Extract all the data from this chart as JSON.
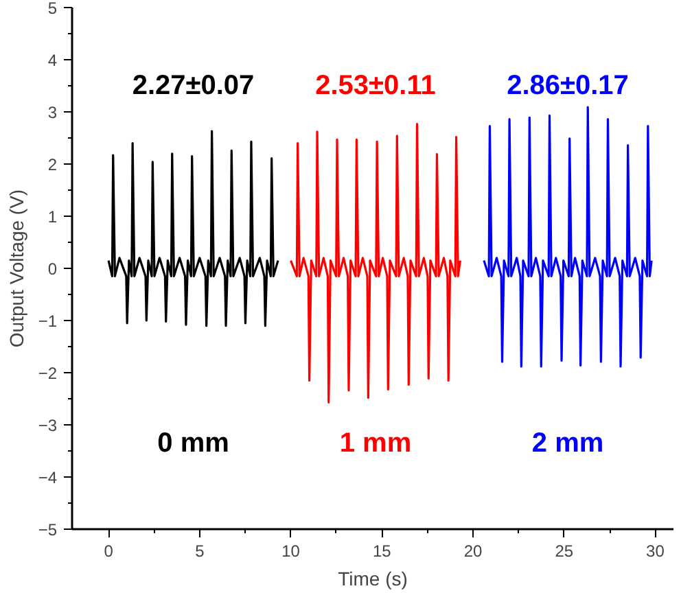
{
  "chart_data": {
    "type": "line",
    "xlabel": "Time (s)",
    "ylabel": "Output Voltage (V)",
    "xlim": [
      -2,
      31
    ],
    "ylim": [
      -5,
      5
    ],
    "xticks": [
      0,
      5,
      10,
      15,
      20,
      25,
      30
    ],
    "yticks": [
      -5,
      -4,
      -3,
      -2,
      -1,
      0,
      1,
      2,
      3,
      4,
      5
    ],
    "grid": false,
    "marker": "none",
    "line_style": "solid",
    "series": [
      {
        "color": "#000000",
        "x": [
          0.0,
          0.2,
          0.25,
          0.35,
          0.6,
          0.97,
          1.02,
          1.12,
          1.27,
          1.32,
          1.42,
          1.7,
          2.03,
          2.08,
          2.18,
          2.37,
          2.42,
          2.52,
          2.8,
          3.1,
          3.15,
          3.25,
          3.44,
          3.49,
          3.59,
          3.9,
          4.2,
          4.25,
          4.35,
          4.53,
          4.58,
          4.68,
          5.0,
          5.32,
          5.37,
          5.47,
          5.62,
          5.67,
          5.77,
          6.1,
          6.39,
          6.44,
          6.54,
          6.7,
          6.75,
          6.85,
          7.2,
          7.46,
          7.51,
          7.61,
          7.78,
          7.83,
          7.93,
          8.3,
          8.55,
          8.6,
          8.7,
          8.9,
          8.95,
          9.05,
          9.3
        ],
        "values": [
          0.15,
          -0.15,
          2.17,
          -0.15,
          0.2,
          -0.15,
          -1.05,
          0.15,
          -0.15,
          2.4,
          -0.15,
          0.2,
          -0.15,
          -1.0,
          0.15,
          -0.15,
          2.04,
          -0.15,
          0.2,
          -0.15,
          -1.02,
          0.15,
          -0.15,
          2.2,
          -0.15,
          0.2,
          -0.15,
          -1.08,
          0.15,
          -0.15,
          2.15,
          -0.15,
          0.2,
          -0.15,
          -1.1,
          0.15,
          -0.15,
          2.63,
          -0.15,
          0.2,
          -0.15,
          -1.1,
          0.15,
          -0.15,
          2.26,
          -0.15,
          0.2,
          -0.15,
          -1.05,
          0.15,
          -0.15,
          2.43,
          -0.15,
          0.2,
          -0.15,
          -1.1,
          0.15,
          -0.15,
          2.11,
          -0.15,
          0.15
        ]
      },
      {
        "color": "#ff0000",
        "x": [
          10.0,
          10.33,
          10.38,
          10.48,
          10.7,
          10.97,
          11.02,
          11.12,
          11.4,
          11.45,
          11.55,
          11.8,
          12.03,
          12.08,
          12.18,
          12.49,
          12.54,
          12.64,
          12.9,
          13.13,
          13.18,
          13.28,
          13.56,
          13.61,
          13.71,
          13.95,
          14.2,
          14.25,
          14.35,
          14.68,
          14.73,
          14.83,
          15.05,
          15.29,
          15.34,
          15.44,
          15.78,
          15.83,
          15.93,
          16.2,
          16.42,
          16.47,
          16.57,
          16.88,
          16.93,
          17.03,
          17.3,
          17.51,
          17.56,
          17.66,
          17.97,
          18.02,
          18.12,
          18.4,
          18.6,
          18.65,
          18.75,
          19.03,
          19.08,
          19.18,
          19.3
        ],
        "values": [
          0.15,
          -0.15,
          2.4,
          -0.15,
          0.2,
          -0.15,
          -2.15,
          0.15,
          -0.15,
          2.62,
          -0.15,
          0.2,
          -0.15,
          -2.57,
          0.15,
          -0.15,
          2.47,
          -0.15,
          0.2,
          -0.15,
          -2.34,
          0.15,
          -0.15,
          2.47,
          -0.15,
          0.2,
          -0.15,
          -2.48,
          0.15,
          -0.15,
          2.43,
          -0.15,
          0.2,
          -0.15,
          -2.32,
          0.15,
          -0.15,
          2.54,
          -0.15,
          0.2,
          -0.15,
          -2.23,
          0.15,
          -0.15,
          2.77,
          -0.15,
          0.2,
          -0.15,
          -2.11,
          0.15,
          -0.15,
          2.19,
          -0.15,
          0.2,
          -0.15,
          -2.15,
          0.15,
          -0.15,
          2.52,
          -0.15,
          0.15
        ]
      },
      {
        "color": "#0000ff",
        "x": [
          20.6,
          20.87,
          20.92,
          21.02,
          21.3,
          21.55,
          21.6,
          21.7,
          21.95,
          22.0,
          22.1,
          22.4,
          22.6,
          22.65,
          22.75,
          23.05,
          23.1,
          23.2,
          23.45,
          23.69,
          23.74,
          23.84,
          24.15,
          24.2,
          24.3,
          24.55,
          24.81,
          24.86,
          24.96,
          25.25,
          25.3,
          25.4,
          25.6,
          25.85,
          25.9,
          26.0,
          26.25,
          26.3,
          26.4,
          26.7,
          26.97,
          27.02,
          27.12,
          27.35,
          27.4,
          27.5,
          27.8,
          28.05,
          28.1,
          28.2,
          28.45,
          28.5,
          28.6,
          28.9,
          29.15,
          29.2,
          29.3,
          29.55,
          29.6,
          29.7,
          29.8
        ],
        "values": [
          0.15,
          -0.15,
          2.73,
          -0.15,
          0.2,
          -0.15,
          -1.79,
          0.15,
          -0.15,
          2.86,
          -0.15,
          0.2,
          -0.15,
          -1.88,
          0.15,
          -0.15,
          2.89,
          -0.15,
          0.2,
          -0.15,
          -1.88,
          0.15,
          -0.15,
          2.93,
          -0.15,
          0.2,
          -0.15,
          -1.77,
          0.15,
          -0.15,
          2.49,
          -0.15,
          0.2,
          -0.15,
          -1.86,
          0.15,
          -0.15,
          3.09,
          -0.15,
          0.2,
          -0.15,
          -1.79,
          0.15,
          -0.15,
          2.86,
          -0.15,
          0.2,
          -0.15,
          -1.88,
          0.15,
          -0.15,
          2.36,
          -0.15,
          0.2,
          -0.15,
          -1.71,
          0.15,
          -0.15,
          2.73,
          -0.15,
          0.15
        ]
      }
    ],
    "annotations": [
      "2.27±0.07",
      "2.53±0.11",
      "2.86±0.17",
      "0 mm",
      "1 mm",
      "2 mm"
    ]
  }
}
